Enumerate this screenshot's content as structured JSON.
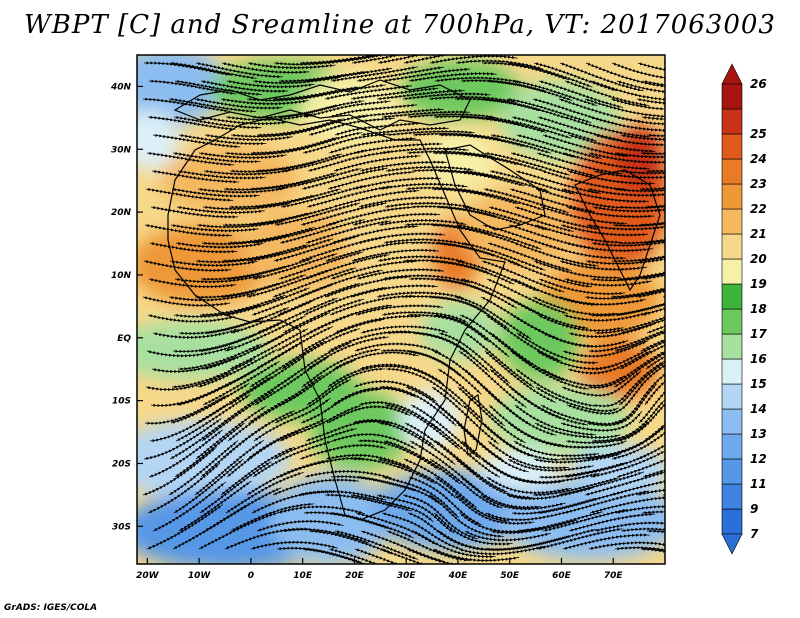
{
  "title": "WBPT [C] and Sreamline at 700hPa, VT: 2017063003",
  "credit": "GrADS: IGES/COLA",
  "map": {
    "lat_labels": [
      "40N",
      "30N",
      "20N",
      "10N",
      "EQ",
      "10S",
      "20S",
      "30S"
    ],
    "lat_values": [
      40,
      30,
      20,
      10,
      0,
      -10,
      -20,
      -30
    ],
    "lon_labels": [
      "20W",
      "10W",
      "0",
      "10E",
      "20E",
      "30E",
      "40E",
      "50E",
      "60E",
      "70E"
    ],
    "lon_values": [
      -20,
      -10,
      0,
      10,
      20,
      30,
      40,
      50,
      60,
      70
    ],
    "lat_range": [
      -36,
      45
    ],
    "lon_range": [
      -22,
      80
    ]
  },
  "colorbar": {
    "labels": [
      "7",
      "9",
      "11",
      "12",
      "13",
      "14",
      "15",
      "16",
      "17",
      "18",
      "19",
      "20",
      "21",
      "22",
      "23",
      "24",
      "25",
      "26"
    ],
    "colors": [
      "#2a6fd6",
      "#3f83e0",
      "#5697e6",
      "#6ea9ec",
      "#8cbdf0",
      "#b4d6f4",
      "#dcf0f8",
      "#a8e0a0",
      "#6dc95e",
      "#3fb43a",
      "#f6f0a8",
      "#f6d88a",
      "#f4b860",
      "#ee9838",
      "#e87a28",
      "#e05a1e",
      "#c83218",
      "#a81410"
    ]
  },
  "legend_colors": {
    "land_outline": "#000000",
    "streamline": "#000000"
  }
}
